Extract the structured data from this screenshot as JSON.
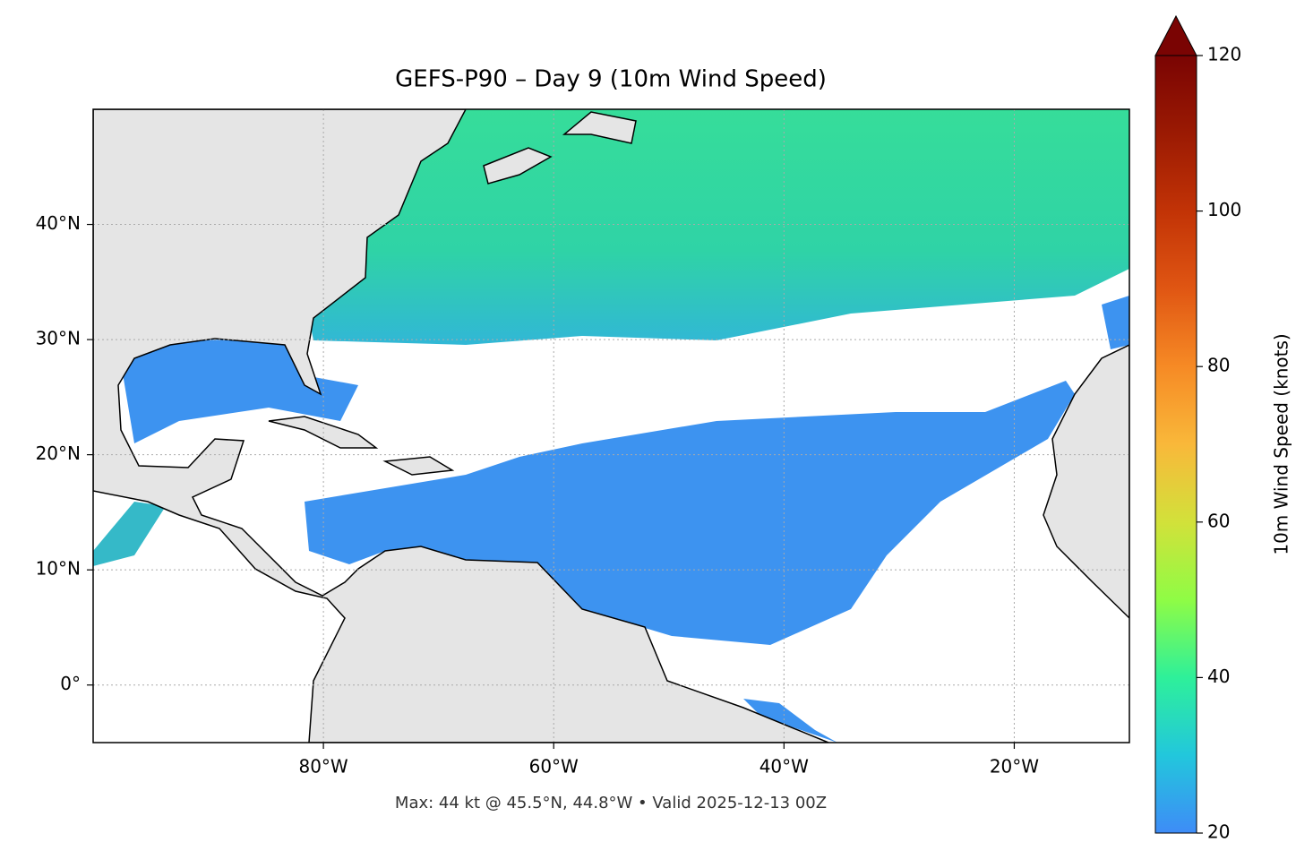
{
  "chart_data": {
    "type": "map",
    "title": "GEFS-P90 – Day 9 (10m Wind Speed)",
    "footnote": "Max: 44 kt @ 45.5°N, 44.8°W • Valid 2025-12-13 00Z",
    "xlim": [
      -100,
      -10
    ],
    "ylim": [
      -5,
      50
    ],
    "xticks": [
      {
        "value": -80,
        "label": "80°W"
      },
      {
        "value": -60,
        "label": "60°W"
      },
      {
        "value": -40,
        "label": "40°W"
      },
      {
        "value": -20,
        "label": "20°W"
      }
    ],
    "yticks": [
      {
        "value": 0,
        "label": "0°"
      },
      {
        "value": 10,
        "label": "10°N"
      },
      {
        "value": 20,
        "label": "20°N"
      },
      {
        "value": 30,
        "label": "30°N"
      },
      {
        "value": 40,
        "label": "40°N"
      }
    ],
    "grid": true,
    "colorbar": {
      "label": "10m Wind Speed (knots)",
      "lim": [
        20,
        120
      ],
      "ticks": [
        20,
        40,
        60,
        80,
        100,
        120
      ],
      "extend": "max"
    }
  }
}
